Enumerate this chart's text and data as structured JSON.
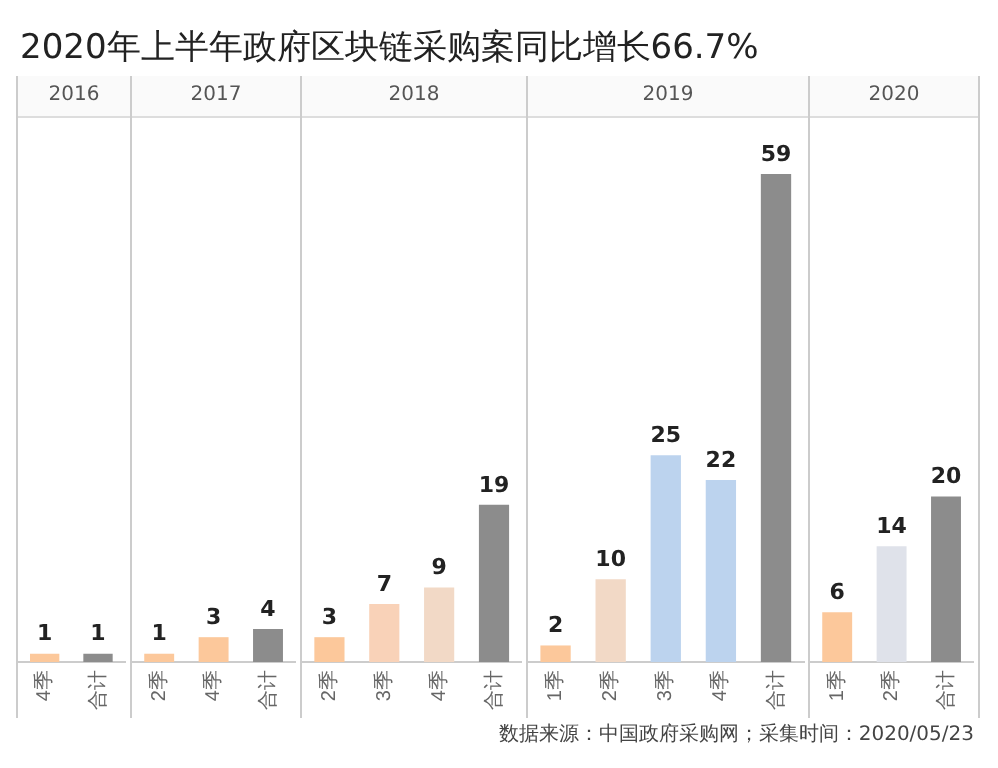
{
  "chart_data": [
    {
      "type": "other",
      "title": "2020年上半年政府区块链采购案同比增长66.7%",
      "annotations": [
        "数据来源：中国政府采购网；采集时间：2020/05/23"
      ]
    },
    {
      "type": "bar",
      "title": "2016",
      "categories": [
        "4季",
        "合计"
      ],
      "values": [
        1,
        1
      ],
      "colors": [
        "#fcc89b",
        "#8c8c8c"
      ],
      "tick_labels": "x",
      "data_labels": true,
      "grid": false
    },
    {
      "type": "bar",
      "title": "2017",
      "categories": [
        "2季",
        "4季",
        "合计"
      ],
      "values": [
        1,
        3,
        4
      ],
      "colors": [
        "#fcc89b",
        "#fcc89b",
        "#8c8c8c"
      ],
      "tick_labels": "x",
      "data_labels": true,
      "grid": false
    },
    {
      "type": "bar",
      "title": "2018",
      "categories": [
        "2季",
        "3季",
        "4季",
        "合计"
      ],
      "values": [
        3,
        7,
        9,
        19
      ],
      "colors": [
        "#fcc89b",
        "#f9d2b8",
        "#f2d9c6",
        "#8c8c8c"
      ],
      "tick_labels": "x",
      "data_labels": true,
      "grid": false
    },
    {
      "type": "bar",
      "title": "2019",
      "categories": [
        "1季",
        "2季",
        "3季",
        "4季",
        "合计"
      ],
      "values": [
        2,
        10,
        25,
        22,
        59
      ],
      "colors": [
        "#fcc89b",
        "#f2d9c6",
        "#bcd3ee",
        "#bcd3ee",
        "#8c8c8c"
      ],
      "tick_labels": "x",
      "data_labels": true,
      "grid": false
    },
    {
      "type": "bar",
      "title": "2020",
      "categories": [
        "1季",
        "2季",
        "合计"
      ],
      "values": [
        6,
        14,
        20
      ],
      "colors": [
        "#fcc89b",
        "#dfe2ea",
        "#8c8c8c"
      ],
      "tick_labels": "x",
      "data_labels": true,
      "grid": false
    }
  ]
}
